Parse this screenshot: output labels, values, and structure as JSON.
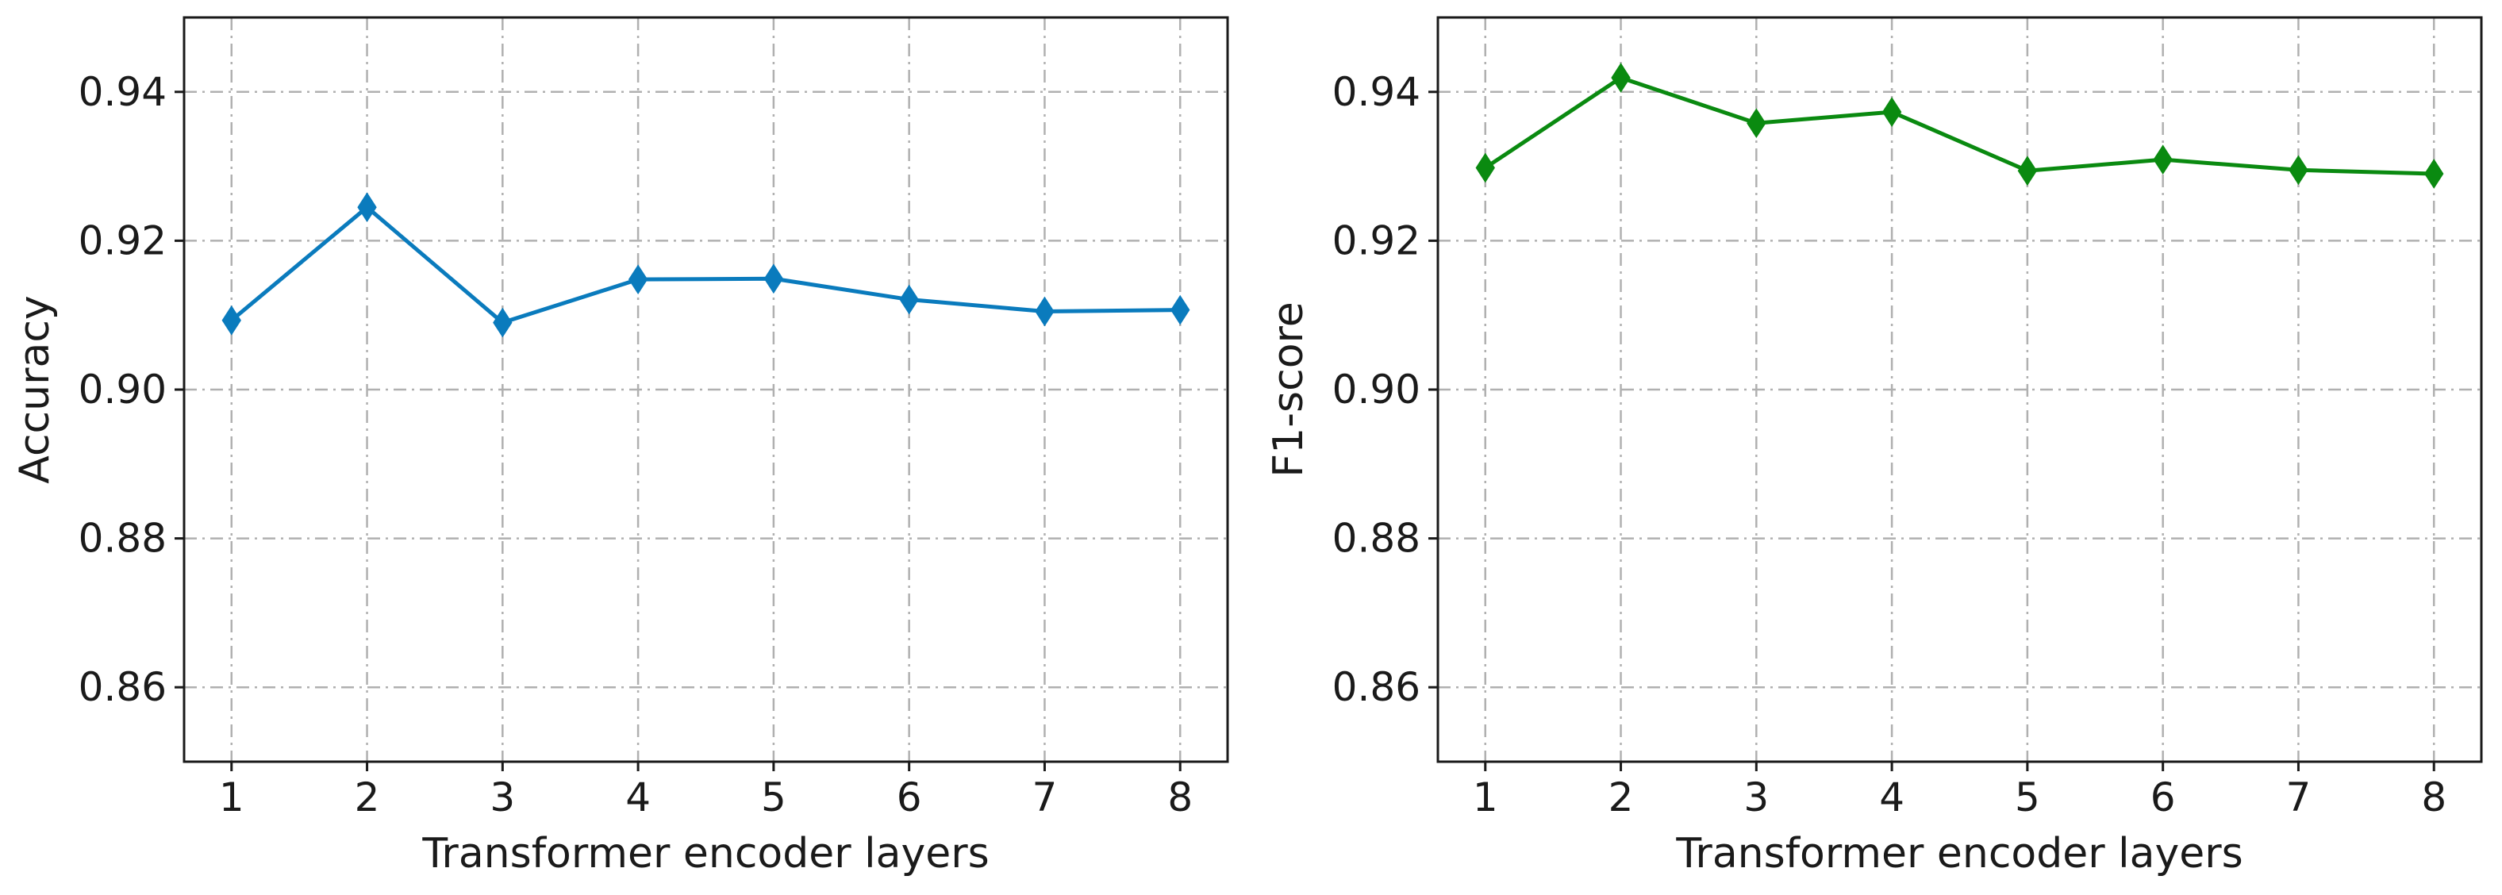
{
  "chart_data": [
    {
      "type": "line",
      "title": "",
      "xlabel": "Transformer encoder layers",
      "ylabel": "Accuracy",
      "x": [
        1,
        2,
        3,
        4,
        5,
        6,
        7,
        8
      ],
      "xticks": [
        "1",
        "2",
        "3",
        "4",
        "5",
        "6",
        "7",
        "8"
      ],
      "yticks": [
        "0.86",
        "0.88",
        "0.90",
        "0.92",
        "0.94"
      ],
      "ylim": [
        0.85,
        0.95
      ],
      "grid": true,
      "marker": "diamond",
      "series": [
        {
          "name": "Accuracy",
          "color": "#0a7bbd",
          "values": [
            0.9093,
            0.9245,
            0.909,
            0.9148,
            0.9149,
            0.9121,
            0.9105,
            0.9107
          ]
        }
      ]
    },
    {
      "type": "line",
      "title": "",
      "xlabel": "Transformer encoder layers",
      "ylabel": "F1-score",
      "x": [
        1,
        2,
        3,
        4,
        5,
        6,
        7,
        8
      ],
      "xticks": [
        "1",
        "2",
        "3",
        "4",
        "5",
        "6",
        "7",
        "8"
      ],
      "yticks": [
        "0.86",
        "0.88",
        "0.90",
        "0.92",
        "0.94"
      ],
      "ylim": [
        0.85,
        0.95
      ],
      "grid": true,
      "marker": "diamond",
      "series": [
        {
          "name": "F1-score",
          "color": "#0a8a10",
          "values": [
            0.9298,
            0.9419,
            0.9358,
            0.9373,
            0.9294,
            0.9309,
            0.9295,
            0.929
          ]
        }
      ]
    }
  ]
}
